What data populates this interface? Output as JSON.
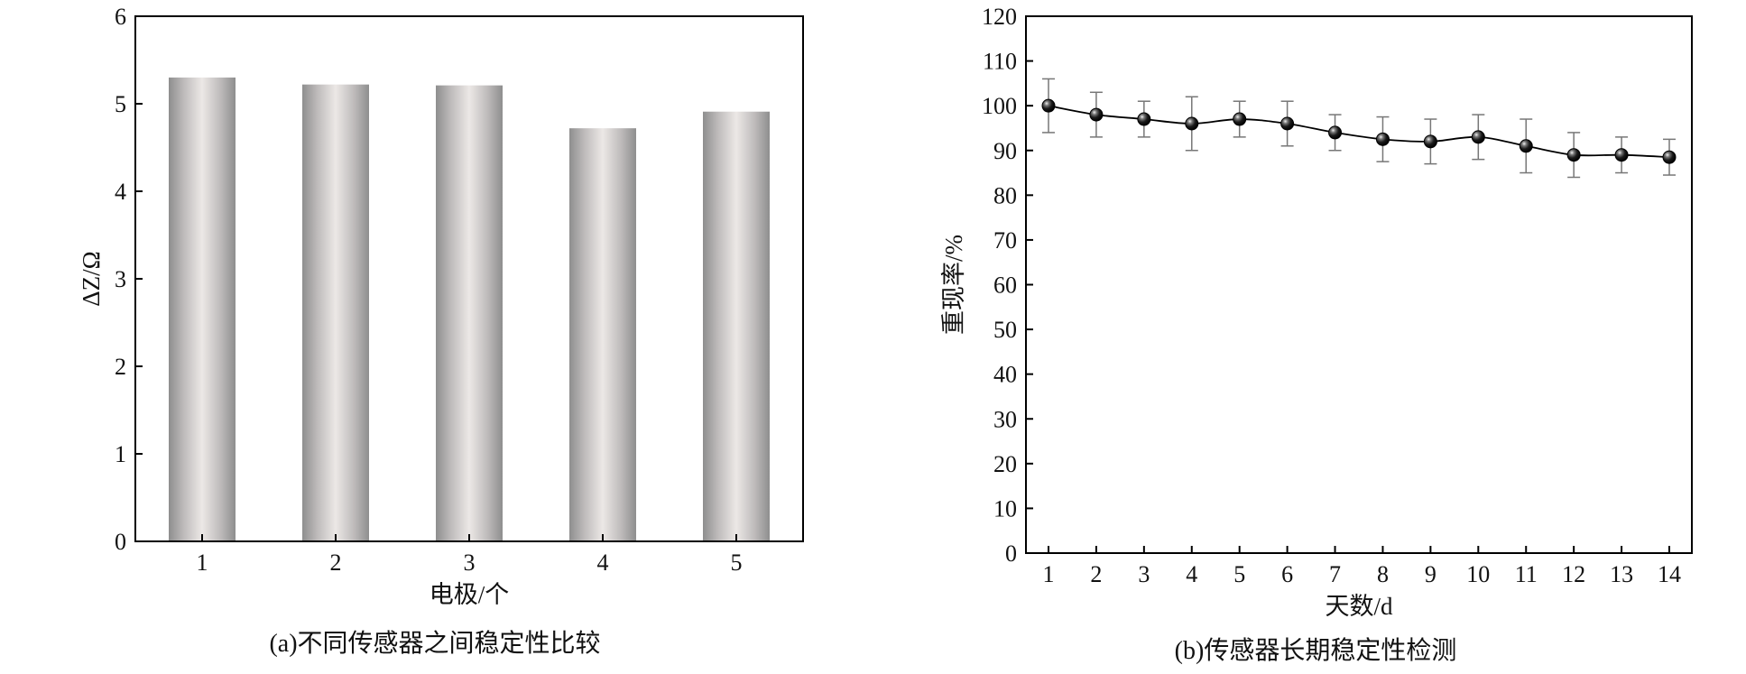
{
  "chart_data": [
    {
      "type": "bar",
      "xlabel": "电极/个",
      "ylabel": "ΔZ/Ω",
      "caption": "(a)不同传感器之间稳定性比较",
      "categories": [
        "1",
        "2",
        "3",
        "4",
        "5"
      ],
      "values": [
        5.3,
        5.22,
        5.21,
        4.72,
        4.91
      ],
      "ylim": [
        0,
        6
      ],
      "yticks": [
        "0",
        "1",
        "2",
        "3",
        "4",
        "5",
        "6"
      ],
      "bar_fill": "cylindrical gray gradient",
      "grid": false
    },
    {
      "type": "line",
      "xlabel": "天数/d",
      "ylabel": "重现率/%",
      "caption": "(b)传感器长期稳定性检测",
      "x": [
        "1",
        "2",
        "3",
        "4",
        "5",
        "6",
        "7",
        "8",
        "9",
        "10",
        "11",
        "12",
        "13",
        "14"
      ],
      "values": [
        100,
        98,
        97,
        96,
        97,
        96,
        94,
        92.5,
        92,
        93,
        91,
        89,
        89,
        88.5
      ],
      "errors": [
        6,
        5,
        4,
        6,
        4,
        5,
        4,
        5,
        5,
        5,
        6,
        5,
        4,
        4
      ],
      "ylim": [
        0,
        120
      ],
      "yticks": [
        "0",
        "10",
        "20",
        "30",
        "40",
        "50",
        "60",
        "70",
        "80",
        "90",
        "100",
        "110",
        "120"
      ],
      "marker": "black sphere",
      "grid": false
    }
  ]
}
